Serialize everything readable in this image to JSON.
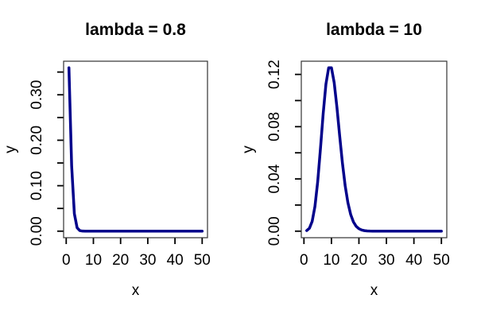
{
  "figure": {
    "background": "#ffffff",
    "axis_color": "#000000",
    "box_color": "#333333"
  },
  "chart_data": [
    {
      "type": "line",
      "title": "lambda = 0.8",
      "xlabel": "x",
      "ylabel": "y",
      "legend": "none",
      "grid": false,
      "line_color": "#00008B",
      "line_width": 3.5,
      "xlim": [
        -0.96,
        51.96
      ],
      "ylim": [
        -0.01438,
        0.37384
      ],
      "x_ticks": [
        0,
        10,
        20,
        30,
        40,
        50
      ],
      "x_tick_labels": [
        "0",
        "10",
        "20",
        "30",
        "40",
        "50"
      ],
      "y_ticks": [
        0,
        0.05,
        0.1,
        0.15,
        0.2,
        0.25,
        0.3,
        0.35
      ],
      "y_tick_labels": [
        "0.00",
        "",
        "0.10",
        "",
        "0.20",
        "",
        "0.30",
        ""
      ],
      "x": [
        1,
        2,
        3,
        4,
        5,
        6,
        7,
        8,
        9,
        10,
        11,
        12,
        13,
        14,
        15,
        16,
        17,
        18,
        19,
        20,
        21,
        22,
        23,
        24,
        25,
        26,
        27,
        28,
        29,
        30,
        31,
        32,
        33,
        34,
        35,
        36,
        37,
        38,
        39,
        40,
        41,
        42,
        43,
        44,
        45,
        46,
        47,
        48,
        49,
        50
      ],
      "y": [
        0.359463,
        0.143785,
        0.038343,
        0.007669,
        0.001227,
        0.000164,
        1.9e-05,
        2e-06,
        0,
        0,
        0,
        0,
        0,
        0,
        0,
        0,
        0,
        0,
        0,
        0,
        0,
        0,
        0,
        0,
        0,
        0,
        0,
        0,
        0,
        0,
        0,
        0,
        0,
        0,
        0,
        0,
        0,
        0,
        0,
        0,
        0,
        0,
        0,
        0,
        0,
        0,
        0,
        0,
        0,
        0
      ]
    },
    {
      "type": "line",
      "title": "lambda = 10",
      "xlabel": "x",
      "ylabel": "y",
      "legend": "none",
      "grid": false,
      "line_color": "#00008B",
      "line_width": 3.5,
      "xlim": [
        -0.96,
        51.96
      ],
      "ylim": [
        -0.005,
        0.13011
      ],
      "x_ticks": [
        0,
        10,
        20,
        30,
        40,
        50
      ],
      "x_tick_labels": [
        "0",
        "10",
        "20",
        "30",
        "40",
        "50"
      ],
      "y_ticks": [
        0,
        0.02,
        0.04,
        0.06,
        0.08,
        0.1,
        0.12
      ],
      "y_tick_labels": [
        "0.00",
        "",
        "0.04",
        "",
        "0.08",
        "",
        "0.12"
      ],
      "x": [
        1,
        2,
        3,
        4,
        5,
        6,
        7,
        8,
        9,
        10,
        11,
        12,
        13,
        14,
        15,
        16,
        17,
        18,
        19,
        20,
        21,
        22,
        23,
        24,
        25,
        26,
        27,
        28,
        29,
        30,
        31,
        32,
        33,
        34,
        35,
        36,
        37,
        38,
        39,
        40,
        41,
        42,
        43,
        44,
        45,
        46,
        47,
        48,
        49,
        50
      ],
      "y": [
        0.000454,
        0.00227,
        0.007567,
        0.018917,
        0.037833,
        0.063055,
        0.090079,
        0.112599,
        0.12511,
        0.12511,
        0.113736,
        0.09478,
        0.072908,
        0.052077,
        0.034718,
        0.021699,
        0.012764,
        0.007091,
        0.003732,
        0.001866,
        0.000889,
        0.000404,
        0.000176,
        7.3e-05,
        2.9e-05,
        1.1e-05,
        4e-06,
        1e-06,
        0,
        0,
        0,
        0,
        0,
        0,
        0,
        0,
        0,
        0,
        0,
        0,
        0,
        0,
        0,
        0,
        0,
        0,
        0,
        0,
        0,
        0
      ]
    }
  ]
}
